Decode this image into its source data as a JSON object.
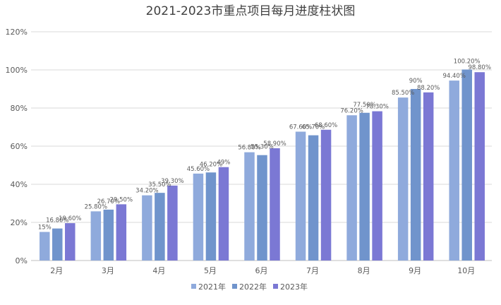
{
  "chart_data": {
    "type": "bar",
    "title": "2021-2023市重点项目每月进度柱状图",
    "categories": [
      "2月",
      "3月",
      "4月",
      "5月",
      "6月",
      "7月",
      "8月",
      "9月",
      "10月"
    ],
    "series": [
      {
        "name": "2021年",
        "color": "#8faadc",
        "values": [
          15,
          25.8,
          34.2,
          45.6,
          56.8,
          67.6,
          76.2,
          85.5,
          94.4
        ],
        "labels": [
          "15%",
          "25.80%",
          "34.20%",
          "45.60%",
          "56.80%",
          "67.60%",
          "76.20%",
          "85.50%",
          "94.40%"
        ]
      },
      {
        "name": "2022年",
        "color": "#7094cc",
        "values": [
          16.8,
          26.7,
          35.5,
          46.2,
          55.3,
          65.7,
          77.5,
          90,
          100.2
        ],
        "labels": [
          "16.80%",
          "26.70%",
          "35.50%",
          "46.20%",
          "55.30%",
          "65.70%",
          "77.50%",
          "90%",
          "100.20%"
        ]
      },
      {
        "name": "2023年",
        "color": "#7b78d4",
        "values": [
          19.6,
          29.5,
          39.3,
          49,
          58.9,
          68.6,
          78.3,
          88.2,
          98.8
        ],
        "labels": [
          "19.60%",
          "29.50%",
          "39.30%",
          "49%",
          "58.90%",
          "68.60%",
          "78.30%",
          "88.20%",
          "98.80%"
        ]
      }
    ],
    "ylim": [
      0,
      120
    ],
    "yticks": [
      0,
      20,
      40,
      60,
      80,
      100,
      120
    ],
    "ytick_labels": [
      "0%",
      "20%",
      "40%",
      "60%",
      "80%",
      "100%",
      "120%"
    ],
    "grid": true,
    "legend_position": "bottom"
  }
}
